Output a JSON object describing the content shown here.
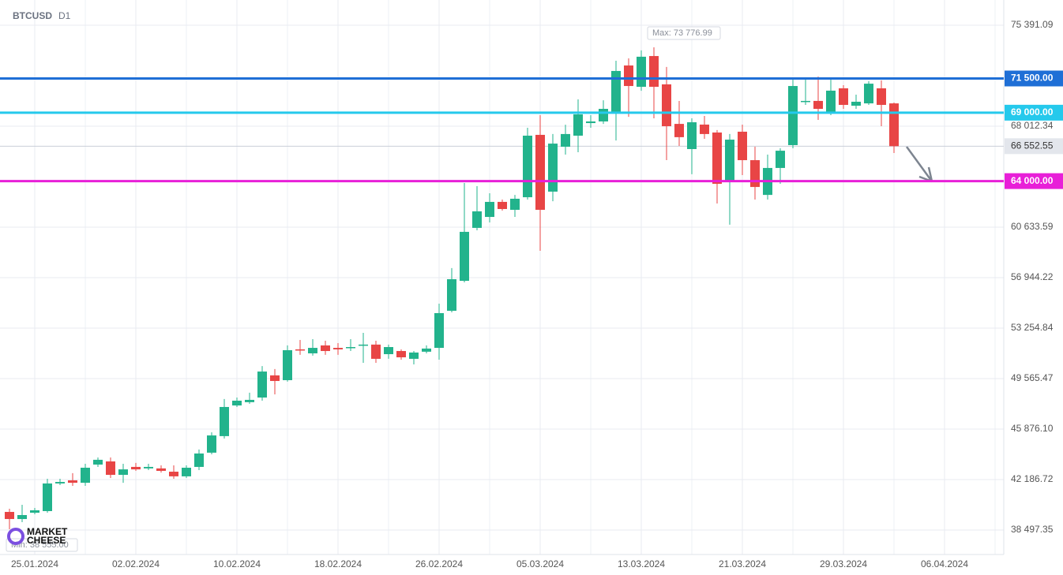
{
  "chart_data": {
    "type": "candlestick",
    "title": "BTCUSD",
    "subtitle": "D1",
    "x": [
      "23.01.2024",
      "24.01.2024",
      "25.01.2024",
      "26.01.2024",
      "27.01.2024",
      "28.01.2024",
      "29.01.2024",
      "30.01.2024",
      "31.01.2024",
      "01.02.2024",
      "02.02.2024",
      "03.02.2024",
      "04.02.2024",
      "05.02.2024",
      "06.02.2024",
      "07.02.2024",
      "08.02.2024",
      "09.02.2024",
      "10.02.2024",
      "11.02.2024",
      "12.02.2024",
      "13.02.2024",
      "14.02.2024",
      "15.02.2024",
      "16.02.2024",
      "17.02.2024",
      "18.02.2024",
      "19.02.2024",
      "20.02.2024",
      "21.02.2024",
      "22.02.2024",
      "23.02.2024",
      "24.02.2024",
      "25.02.2024",
      "26.02.2024",
      "27.02.2024",
      "28.02.2024",
      "29.02.2024",
      "01.03.2024",
      "02.03.2024",
      "03.03.2024",
      "04.03.2024",
      "05.03.2024",
      "06.03.2024",
      "07.03.2024",
      "08.03.2024",
      "09.03.2024",
      "10.03.2024",
      "11.03.2024",
      "12.03.2024",
      "13.03.2024",
      "14.03.2024",
      "15.03.2024",
      "16.03.2024",
      "17.03.2024",
      "18.03.2024",
      "19.03.2024",
      "20.03.2024",
      "21.03.2024",
      "22.03.2024",
      "23.03.2024",
      "24.03.2024",
      "25.03.2024",
      "26.03.2024",
      "27.03.2024",
      "28.03.2024",
      "29.03.2024",
      "30.03.2024",
      "31.03.2024",
      "01.04.2024",
      "02.04.2024"
    ],
    "open": [
      39820,
      39300,
      39760,
      39880,
      41900,
      42130,
      41950,
      43280,
      43510,
      42530,
      43110,
      43000,
      43000,
      42760,
      42420,
      43110,
      44150,
      45360,
      47600,
      47840,
      48180,
      49800,
      49450,
      51700,
      51410,
      51990,
      51810,
      51810,
      51990,
      52050,
      51350,
      51580,
      51010,
      51530,
      51810,
      54520,
      56710,
      60580,
      61380,
      62480,
      61900,
      62820,
      67380,
      63230,
      66510,
      67320,
      68240,
      68360,
      69050,
      72450,
      70890,
      73140,
      71070,
      68180,
      66340,
      68130,
      67550,
      63980,
      67610,
      65530,
      62990,
      64960,
      66630,
      69800,
      69860,
      69050,
      70780,
      69510,
      69680,
      70780,
      69680
    ],
    "high": [
      40050,
      40340,
      40110,
      42240,
      42240,
      42650,
      43340,
      43800,
      43800,
      43340,
      43400,
      43340,
      43220,
      43220,
      43220,
      44380,
      45640,
      48070,
      48180,
      48530,
      50480,
      50260,
      51990,
      52390,
      52450,
      52330,
      52160,
      52450,
      52910,
      52330,
      52050,
      51700,
      51580,
      51990,
      55040,
      57640,
      63860,
      63630,
      63110,
      62650,
      62990,
      67900,
      68820,
      67440,
      68120,
      69970,
      68820,
      69910,
      72800,
      72970,
      73550,
      73776.99,
      72340,
      69860,
      68590,
      68760,
      67730,
      67440,
      68130,
      66510,
      65940,
      66400,
      71470,
      71530,
      71640,
      71530,
      71010,
      70320,
      71300,
      71360,
      69740
    ],
    "low": [
      38555,
      39070,
      39650,
      39760,
      41780,
      41720,
      41720,
      43110,
      42300,
      41950,
      42820,
      42880,
      42700,
      42240,
      42300,
      42880,
      44030,
      45180,
      47490,
      47720,
      47950,
      48410,
      49340,
      51300,
      51240,
      51300,
      51300,
      51580,
      50720,
      50720,
      51010,
      50950,
      50600,
      51410,
      50950,
      54410,
      56600,
      60400,
      60980,
      61840,
      61380,
      62650,
      58900,
      62530,
      65940,
      66110,
      67900,
      68180,
      66970,
      68700,
      70600,
      68590,
      65530,
      66570,
      64500,
      67090,
      62360,
      60810,
      64440,
      62650,
      62650,
      63800,
      66400,
      69570,
      68470,
      68820,
      69280,
      69280,
      69570,
      68010,
      66050
    ],
    "close": [
      39300,
      39590,
      39940,
      41900,
      42010,
      41950,
      43050,
      43630,
      42530,
      42930,
      42930,
      43110,
      42820,
      42420,
      43050,
      44090,
      45410,
      47490,
      47950,
      48010,
      50080,
      49390,
      51640,
      51640,
      51810,
      51580,
      51700,
      51870,
      52050,
      51010,
      51870,
      51120,
      51470,
      51760,
      54350,
      56830,
      60290,
      61790,
      62480,
      61960,
      62710,
      67320,
      61900,
      66740,
      67440,
      68880,
      68360,
      69280,
      72050,
      70950,
      73090,
      70890,
      68010,
      67210,
      68300,
      67440,
      63800,
      67030,
      65530,
      63570,
      64960,
      66220,
      70950,
      69860,
      69280,
      70610,
      69570,
      69800,
      71120,
      69570,
      66552.55
    ],
    "up_color": "#22b38c",
    "down_color": "#e84545",
    "ylim": [
      36708,
      77236
    ],
    "yticks": [
      {
        "value": 75391.09,
        "label": "75 391.09"
      },
      {
        "value": 68012.34,
        "label": "68 012.34"
      },
      {
        "value": 60633.59,
        "label": "60 633.59"
      },
      {
        "value": 56944.22,
        "label": "56 944.22"
      },
      {
        "value": 53254.84,
        "label": "53 254.84"
      },
      {
        "value": 49565.47,
        "label": "49 565.47"
      },
      {
        "value": 45876.1,
        "label": "45 876.10"
      },
      {
        "value": 42186.72,
        "label": "42 186.72"
      },
      {
        "value": 38497.35,
        "label": "38 497.35"
      }
    ],
    "xticks": [
      "25.01.2024",
      "02.02.2024",
      "10.02.2024",
      "18.02.2024",
      "26.02.2024",
      "05.03.2024",
      "13.03.2024",
      "21.03.2024",
      "29.03.2024",
      "06.04.2024"
    ],
    "grid": true,
    "levels": [
      {
        "value": 71500,
        "label": "71 500.00",
        "color": "#1f6fd6"
      },
      {
        "value": 69000,
        "label": "69 000.00",
        "color": "#25c9ec"
      },
      {
        "value": 64000,
        "label": "64 000.00",
        "color": "#e81fd8"
      }
    ],
    "last_price": {
      "value": 66552.55,
      "label": "66 552.55"
    },
    "max_label": "Max: 73 776.99",
    "min_label": "Min: 38 555.00",
    "watermark": [
      "MARKET",
      "CHEESE"
    ]
  }
}
